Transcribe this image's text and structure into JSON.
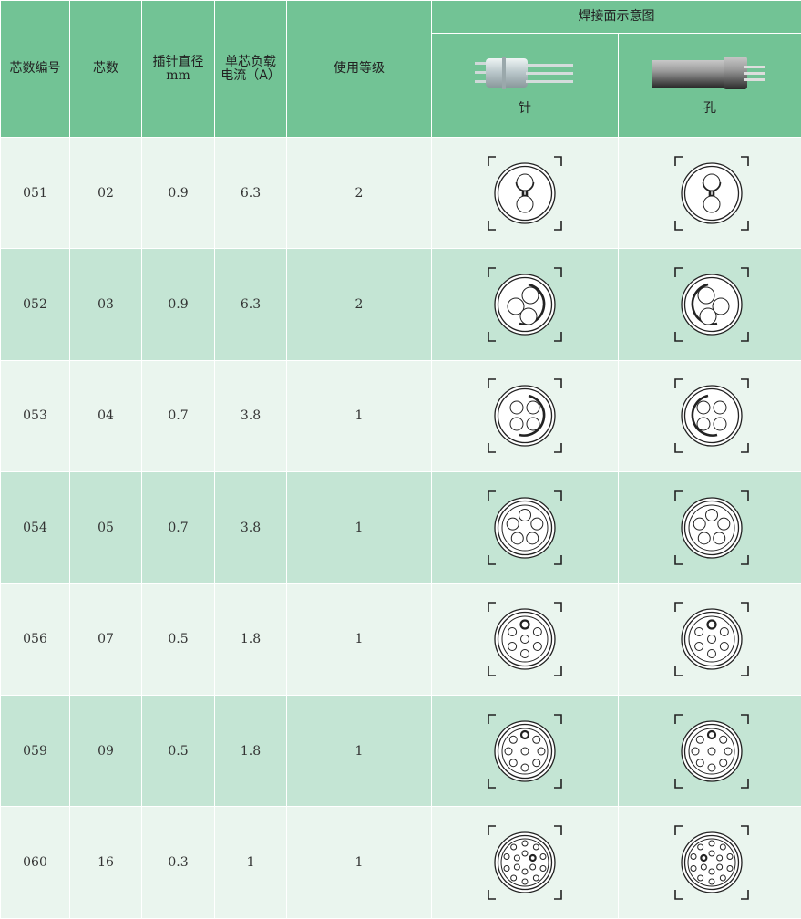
{
  "header": {
    "columns": [
      "芯数编号",
      "芯数",
      "插针直径\nmm",
      "单芯负载\n电流（A）",
      "使用等级"
    ],
    "col_code": "芯数编号",
    "col_cores": "芯数",
    "col_diameter": "插针直径",
    "col_diameter_unit": "mm",
    "col_current": "单芯负载",
    "col_current_unit": "电流（A）",
    "col_grade": "使用等级",
    "diagram_group": "焊接面示意图",
    "pin_label": "针",
    "socket_label": "孔"
  },
  "colors": {
    "header": "#72c395",
    "row_light": "#eaf5ee",
    "row_dark": "#c4e5d4"
  },
  "rows": [
    {
      "code": "051",
      "cores": "02",
      "diameter": "0.9",
      "current": "6.3",
      "grade": "2"
    },
    {
      "code": "052",
      "cores": "03",
      "diameter": "0.9",
      "current": "6.3",
      "grade": "2"
    },
    {
      "code": "053",
      "cores": "04",
      "diameter": "0.7",
      "current": "3.8",
      "grade": "1"
    },
    {
      "code": "054",
      "cores": "05",
      "diameter": "0.7",
      "current": "3.8",
      "grade": "1"
    },
    {
      "code": "056",
      "cores": "07",
      "diameter": "0.5",
      "current": "1.8",
      "grade": "1"
    },
    {
      "code": "059",
      "cores": "09",
      "diameter": "0.5",
      "current": "1.8",
      "grade": "1"
    },
    {
      "code": "060",
      "cores": "16",
      "diameter": "0.3",
      "current": "1",
      "grade": "1"
    }
  ]
}
